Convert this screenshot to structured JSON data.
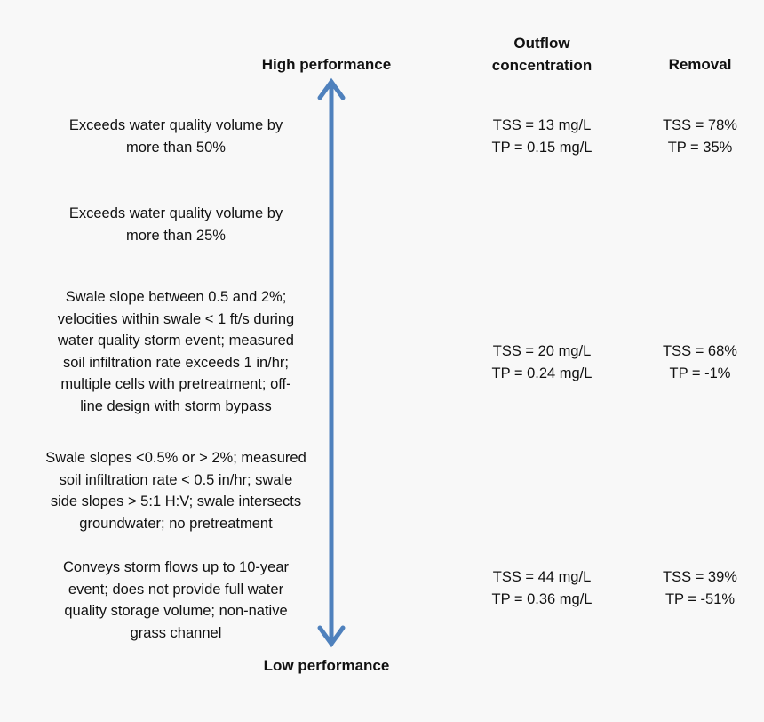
{
  "labels": {
    "high": "High performance",
    "low": "Low performance"
  },
  "headers": {
    "outflow_line1": "Outflow",
    "outflow_line2": "concentration",
    "removal": "Removal"
  },
  "rows": [
    {
      "desc": [
        "Exceeds water quality volume by",
        "more than 50%"
      ],
      "outflow": [
        "TSS = 13 mg/L",
        "TP = 0.15 mg/L"
      ],
      "removal": [
        "TSS = 78%",
        "TP = 35%"
      ]
    },
    {
      "desc": [
        "Exceeds water quality volume by",
        "more than 25%"
      ]
    },
    {
      "desc": [
        "Swale slope between 0.5 and 2%;",
        "velocities within swale < 1 ft/s during",
        "water quality storm event; measured",
        "soil infiltration rate exceeds 1 in/hr;",
        "multiple cells with pretreatment; off-",
        "line design with storm bypass"
      ],
      "outflow": [
        "TSS = 20 mg/L",
        "TP = 0.24 mg/L"
      ],
      "removal": [
        "TSS = 68%",
        "TP = -1%"
      ]
    },
    {
      "desc": [
        "Swale slopes <0.5% or > 2%; measured",
        "soil infiltration rate < 0.5 in/hr; swale",
        "side slopes > 5:1 H:V; swale intersects",
        "groundwater; no pretreatment"
      ]
    },
    {
      "desc": [
        "Conveys storm flows up to 10-year",
        "event; does not provide full water",
        "quality storage volume; non-native",
        "grass channel"
      ],
      "outflow": [
        "TSS = 44 mg/L",
        "TP = 0.36 mg/L"
      ],
      "removal": [
        "TSS = 39%",
        "TP = -51%"
      ]
    }
  ],
  "colors": {
    "arrow": "#4f81bd"
  }
}
